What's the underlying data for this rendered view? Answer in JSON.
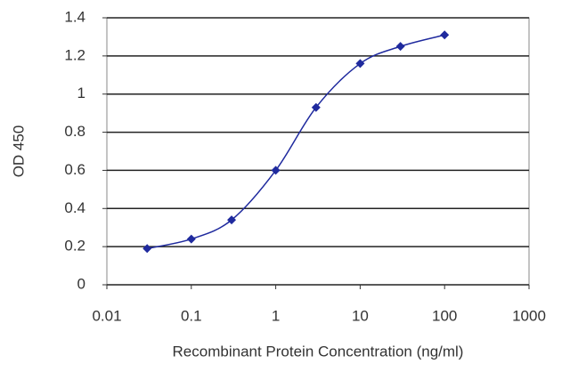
{
  "chart_data": {
    "type": "line",
    "x_label": "Recombinant Protein Concentration (ng/ml)",
    "y_label": "OD 450",
    "x": [
      0.03,
      0.1,
      0.3,
      1,
      3,
      10,
      30,
      100
    ],
    "values": [
      0.19,
      0.24,
      0.34,
      0.6,
      0.93,
      1.16,
      1.25,
      1.31
    ],
    "color": "#1f2a9e",
    "xscale": "log",
    "xlim": [
      0.01,
      1000
    ],
    "xticks": [
      0.01,
      0.1,
      1,
      10,
      100,
      1000
    ],
    "ylim": [
      0,
      1.4
    ],
    "yticks": [
      0,
      0.2,
      0.4,
      0.6,
      0.8,
      1,
      1.2,
      1.4
    ],
    "grid": true
  }
}
